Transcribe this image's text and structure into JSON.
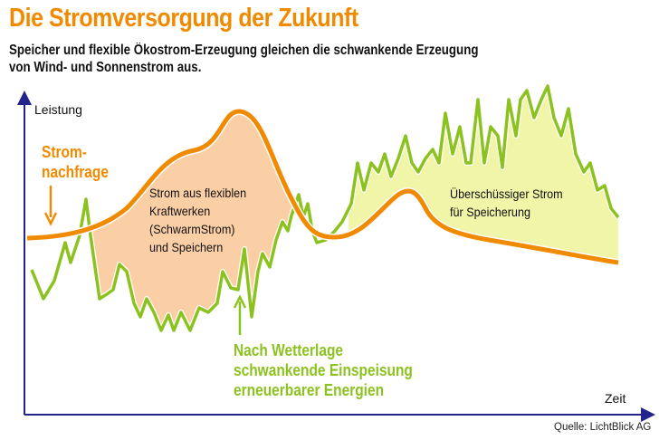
{
  "title": "Die Stromversorgung der Zukunft",
  "subtitle_line1": "Speicher und flexible Ökostrom-Erzeugung gleichen die schwankende Erzeugung",
  "subtitle_line2": "von Wind- und Sonnenstrom aus.",
  "axes": {
    "y_label": "Leistung",
    "x_label": "Zeit"
  },
  "labels": {
    "demand_line1": "Strom-",
    "demand_line2": "nachfrage",
    "flex_line1": "Strom aus flexiblen",
    "flex_line2": "Kraftwerken",
    "flex_line3": "(SchwarmStrom)",
    "flex_line4": "und Speichern",
    "surplus_line1": "Überschüssiger Strom",
    "surplus_line2": "für Speicherung",
    "renew_line1": "Nach Wetterlage",
    "renew_line2": "schwankende Einspeisung",
    "renew_line3": "erneuerbarer Energien"
  },
  "source": "Quelle: LichtBlick AG",
  "colors": {
    "orange": "#f08a00",
    "green": "#8cc21f",
    "axis": "#23238c",
    "orange_fill": "#fbcfa6",
    "yellow_fill": "#f0f5a8"
  }
}
